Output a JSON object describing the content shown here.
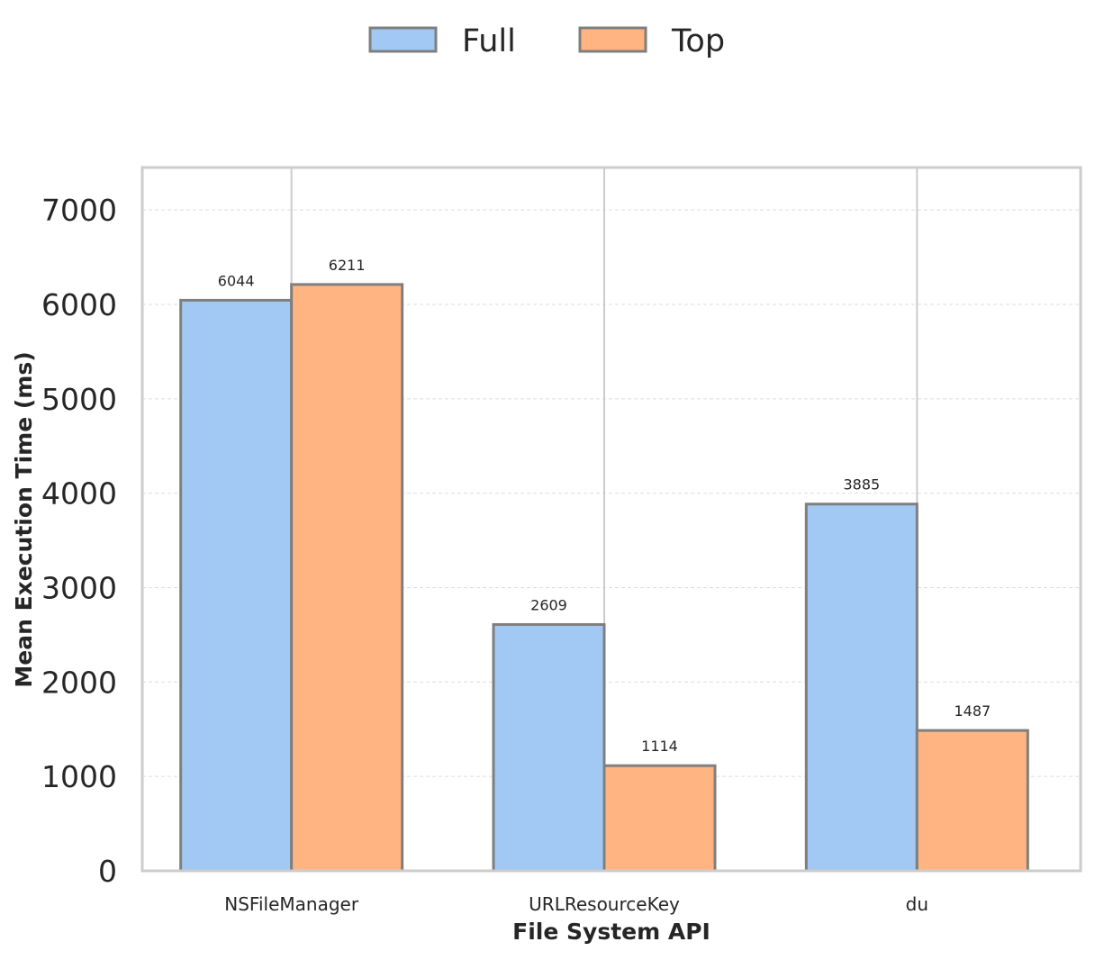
{
  "chart_data": {
    "type": "bar",
    "categories": [
      "NSFileManager",
      "URLResourceKey",
      "du"
    ],
    "series": [
      {
        "name": "Full",
        "values": [
          6044,
          2609,
          3885
        ],
        "color": "#a1c9f4"
      },
      {
        "name": "Top",
        "values": [
          6211,
          1114,
          1487
        ],
        "color": "#ffb482"
      }
    ],
    "xlabel": "File System API",
    "ylabel": "Mean Execution Time (ms)",
    "ylim": [
      0,
      7450
    ],
    "yticks": [
      0,
      1000,
      2000,
      3000,
      4000,
      5000,
      6000,
      7000
    ],
    "grid": true,
    "legend_position": "top-center",
    "bar_edge_color": "#7f7f7f",
    "axis_color": "#cccccc"
  }
}
